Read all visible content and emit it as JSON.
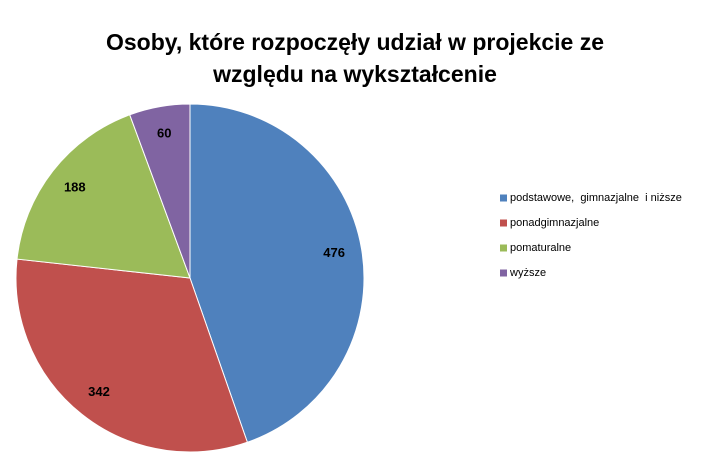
{
  "chart_data": {
    "type": "pie",
    "title": [
      "Osoby, które rozpoczęły udział w projekcie ze",
      "względu na wykształcenie"
    ],
    "categories": [
      "podstawowe,  gimnazjalne  i niższe",
      "ponadgimnazjalne",
      "pomaturalne",
      "wyższe"
    ],
    "values": [
      476,
      342,
      188,
      60
    ],
    "colors": [
      "#4f81bd",
      "#c0504d",
      "#9bbb59",
      "#8064a2"
    ],
    "legend": "right"
  }
}
